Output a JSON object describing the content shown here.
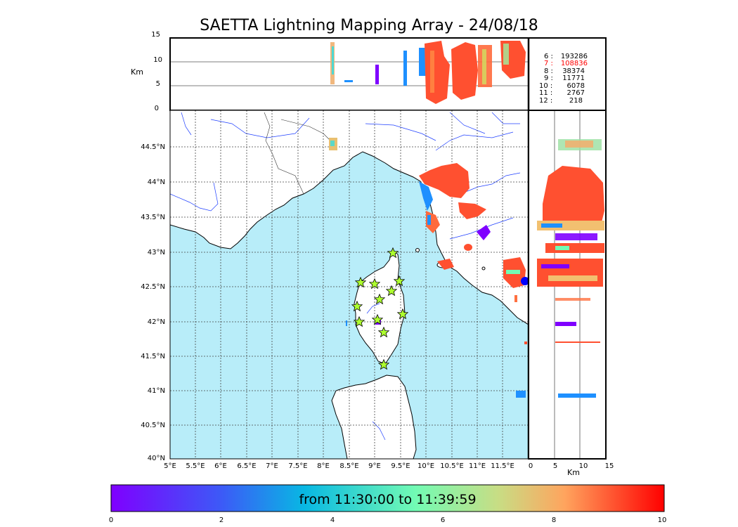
{
  "title": "SAETTA Lightning Mapping Array - 24/08/18",
  "top_panel": {
    "ylabel": "Km",
    "yticks": [
      "15",
      "10",
      "5",
      "0"
    ]
  },
  "stats": [
    {
      "label": "6  :",
      "value": "193286",
      "color": "#000000"
    },
    {
      "label": "7  :",
      "value": "108836",
      "color": "#ff0000"
    },
    {
      "label": "8  :",
      "value": "38374",
      "color": "#000000"
    },
    {
      "label": "9  :",
      "value": "11771",
      "color": "#000000"
    },
    {
      "label": "10 :",
      "value": "6078",
      "color": "#000000"
    },
    {
      "label": "11 :",
      "value": "2767",
      "color": "#000000"
    },
    {
      "label": "12 :",
      "value": "218",
      "color": "#000000"
    }
  ],
  "map": {
    "lon_ticks": [
      "5°E",
      "5.5°E",
      "6°E",
      "6.5°E",
      "7°E",
      "7.5°E",
      "8°E",
      "8.5°E",
      "9°E",
      "9.5°E",
      "10°E",
      "10.5°E",
      "11°E",
      "11.5°E"
    ],
    "lat_ticks": [
      "44.5°N",
      "44°N",
      "43.5°N",
      "43°N",
      "42.5°N",
      "42°N",
      "41.5°N",
      "41°N",
      "40.5°N",
      "40°N"
    ],
    "sea_color": "#b8edf9",
    "land_color": "#ffffff"
  },
  "side_panel": {
    "xlabel": "Km",
    "xticks": [
      "0",
      "5",
      "10",
      "15"
    ]
  },
  "colorbar": {
    "text": "from 11:30:00 to 11:39:59",
    "ticks": [
      "0",
      "2",
      "4",
      "6",
      "8",
      "10"
    ],
    "colors": [
      "#7f00ff",
      "#3a5bf6",
      "#00b3e6",
      "#4dfbc8",
      "#b3f08a",
      "#ffb36b",
      "#ff4020",
      "#ff0000"
    ]
  },
  "stations": "station-star-icon",
  "source_point": "radar-dot-icon"
}
